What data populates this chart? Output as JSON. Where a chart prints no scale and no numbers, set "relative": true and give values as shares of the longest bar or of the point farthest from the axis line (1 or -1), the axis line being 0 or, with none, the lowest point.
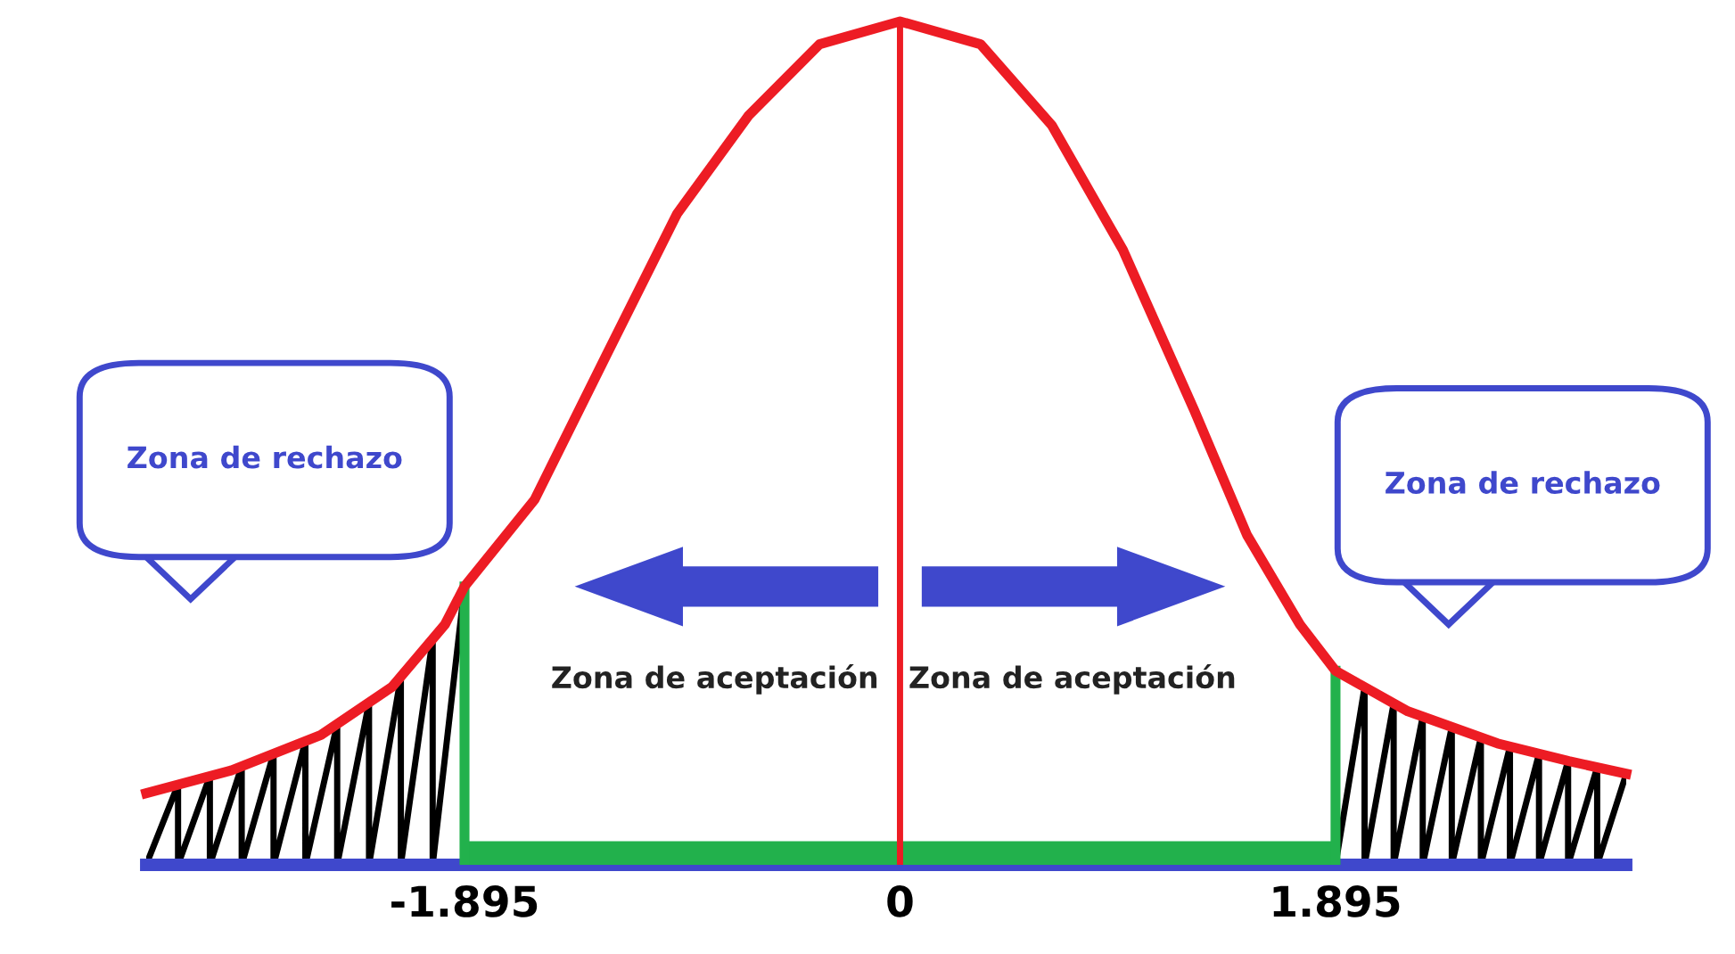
{
  "chart_data": {
    "type": "line",
    "relative": true,
    "x": [
      -3.28,
      -2.91,
      -2.52,
      -2.21,
      -1.98,
      -1.895,
      -1.59,
      -1.28,
      -0.97,
      -0.66,
      -0.35,
      0,
      0.35,
      0.66,
      0.97,
      1.28,
      1.51,
      1.74,
      1.895,
      2.21,
      2.6,
      2.91,
      3.16
    ],
    "series": [
      {
        "color": "#ed1c24",
        "values": [
          0.085,
          0.112,
          0.154,
          0.211,
          0.285,
          0.33,
          0.433,
          0.603,
          0.772,
          0.888,
          0.973,
          1.0,
          0.973,
          0.877,
          0.729,
          0.539,
          0.391,
          0.285,
          0.23,
          0.182,
          0.144,
          0.123,
          0.108
        ]
      }
    ],
    "xlim": [
      -3.28,
      3.16
    ],
    "xticks": [
      -1.895,
      0,
      1.895
    ],
    "ref_lines": [
      {
        "axis": "x",
        "value": 0,
        "color": "#ed1c24"
      },
      {
        "axis": "x",
        "value": -1.895,
        "color": "#22b14c"
      },
      {
        "axis": "x",
        "value": 1.895,
        "color": "#22b14c"
      }
    ],
    "annotations": [
      "Zona de rechazo",
      "Zona de rechazo",
      "Zona de aceptación",
      "Zona de aceptación"
    ],
    "grid": false,
    "legend": false,
    "marker": "none",
    "line_style": "solid"
  }
}
